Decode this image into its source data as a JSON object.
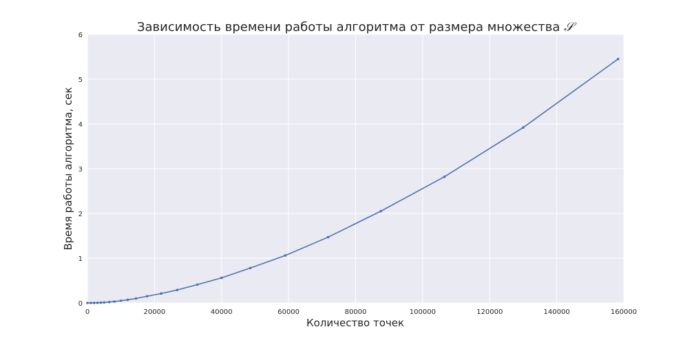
{
  "chart_data": {
    "type": "line",
    "title": "Зависимость времени работы алгоритма от размера множества",
    "title_symbol": "𝒮",
    "xlabel": "Количество точек",
    "ylabel": "Время работы алгоритма, сек",
    "xlim": [
      0,
      160000
    ],
    "ylim": [
      0,
      6
    ],
    "grid": true,
    "x_ticks": [
      0,
      20000,
      40000,
      60000,
      80000,
      100000,
      120000,
      140000,
      160000
    ],
    "y_ticks": [
      0,
      1,
      2,
      3,
      4,
      5,
      6
    ],
    "series": [
      {
        "color": "#4c72b0",
        "x": [
          0,
          1000,
          2000,
          3000,
          4000,
          5000,
          6500,
          8000,
          10000,
          12000,
          14500,
          17800,
          22000,
          26800,
          32800,
          40000,
          48600,
          59000,
          71800,
          87500,
          106500,
          130000,
          158300
        ],
        "y": [
          0.0,
          0.0,
          0.001,
          0.004,
          0.006,
          0.01,
          0.02,
          0.03,
          0.05,
          0.07,
          0.1,
          0.15,
          0.21,
          0.29,
          0.41,
          0.56,
          0.78,
          1.06,
          1.47,
          2.05,
          2.82,
          3.92,
          5.45
        ]
      }
    ]
  }
}
